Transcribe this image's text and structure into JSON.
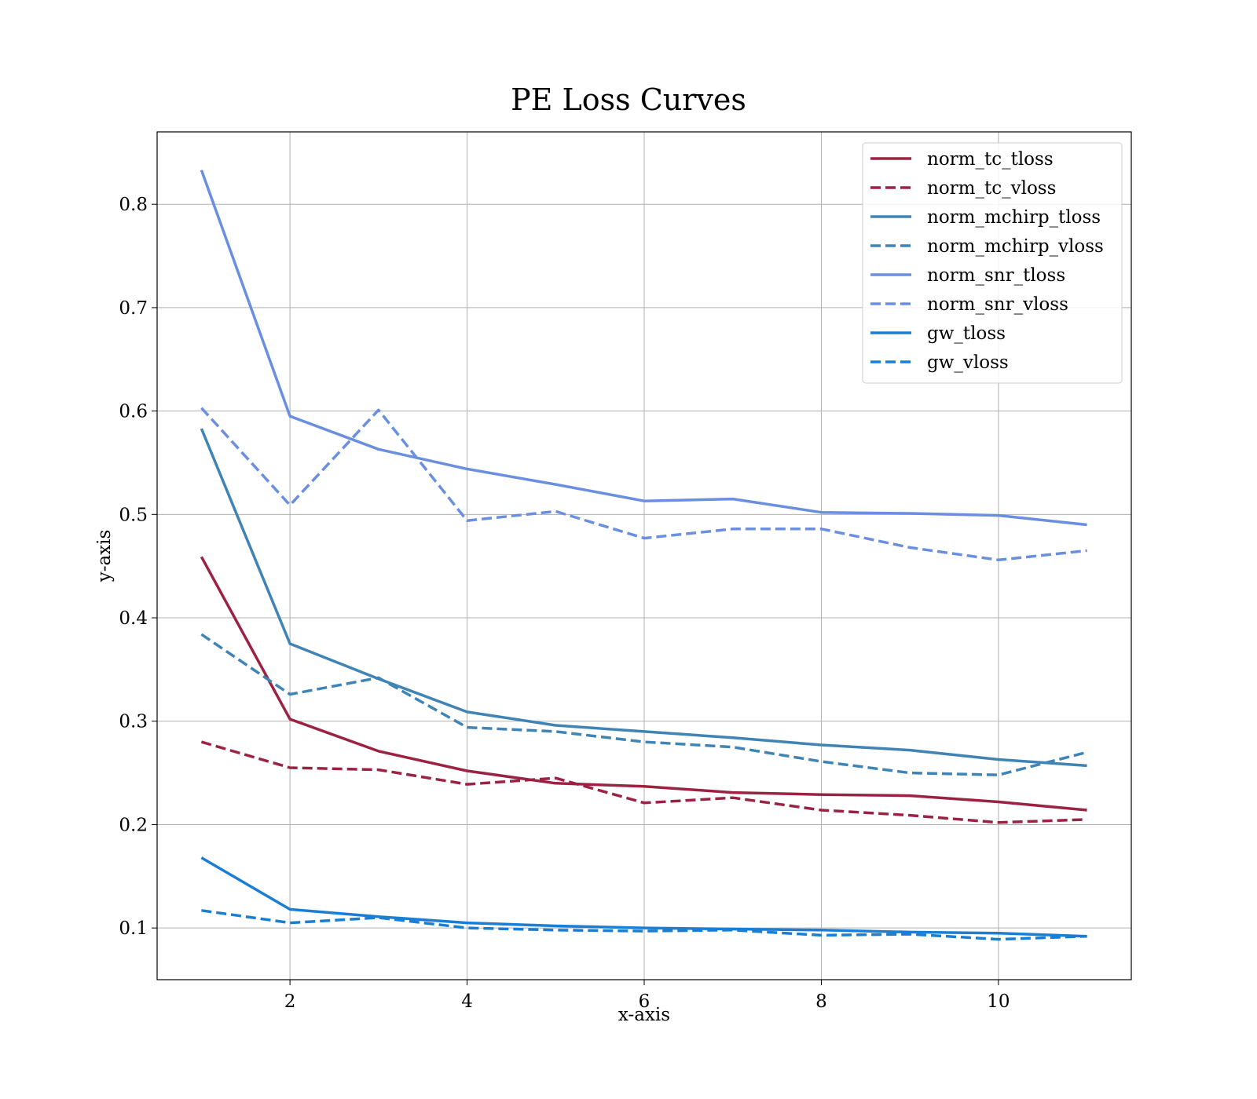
{
  "chart_data": {
    "type": "line",
    "title": "PE Loss Curves",
    "xlabel": "x-axis",
    "ylabel": "y-axis",
    "xlim": [
      0.5,
      11.5
    ],
    "ylim": [
      0.05,
      0.87
    ],
    "x_ticks": [
      2,
      4,
      6,
      8,
      10
    ],
    "y_ticks": [
      0.1,
      0.2,
      0.3,
      0.4,
      0.5,
      0.6,
      0.7,
      0.8
    ],
    "grid": true,
    "legend_position": "top-right",
    "x": [
      1,
      2,
      3,
      4,
      5,
      6,
      7,
      8,
      9,
      10,
      11
    ],
    "series": [
      {
        "name": "norm_tc_tloss",
        "color": "#9b2242",
        "style": "solid",
        "values": [
          0.459,
          0.302,
          0.271,
          0.252,
          0.24,
          0.237,
          0.231,
          0.229,
          0.228,
          0.222,
          0.214
        ]
      },
      {
        "name": "norm_tc_vloss",
        "color": "#9b2242",
        "style": "dashed",
        "values": [
          0.28,
          0.255,
          0.253,
          0.239,
          0.245,
          0.221,
          0.226,
          0.214,
          0.209,
          0.202,
          0.205
        ]
      },
      {
        "name": "norm_mchirp_tloss",
        "color": "#3f84b4",
        "style": "solid",
        "values": [
          0.583,
          0.375,
          0.341,
          0.309,
          0.296,
          0.29,
          0.284,
          0.277,
          0.272,
          0.263,
          0.257
        ]
      },
      {
        "name": "norm_mchirp_vloss",
        "color": "#3f84b4",
        "style": "dashed",
        "values": [
          0.384,
          0.326,
          0.342,
          0.294,
          0.29,
          0.28,
          0.275,
          0.261,
          0.25,
          0.248,
          0.27
        ]
      },
      {
        "name": "norm_snr_tloss",
        "color": "#6a8fe0",
        "style": "solid",
        "values": [
          0.833,
          0.595,
          0.563,
          0.544,
          0.529,
          0.513,
          0.515,
          0.502,
          0.501,
          0.499,
          0.49
        ]
      },
      {
        "name": "norm_snr_vloss",
        "color": "#6a8fe0",
        "style": "dashed",
        "values": [
          0.603,
          0.509,
          0.601,
          0.494,
          0.503,
          0.477,
          0.486,
          0.486,
          0.468,
          0.456,
          0.465
        ]
      },
      {
        "name": "gw_tloss",
        "color": "#1a7fd4",
        "style": "solid",
        "values": [
          0.168,
          0.118,
          0.111,
          0.105,
          0.102,
          0.1,
          0.099,
          0.098,
          0.096,
          0.095,
          0.092
        ]
      },
      {
        "name": "gw_vloss",
        "color": "#1a7fd4",
        "style": "dashed",
        "values": [
          0.117,
          0.105,
          0.11,
          0.1,
          0.098,
          0.097,
          0.098,
          0.093,
          0.094,
          0.089,
          0.092
        ]
      }
    ]
  }
}
